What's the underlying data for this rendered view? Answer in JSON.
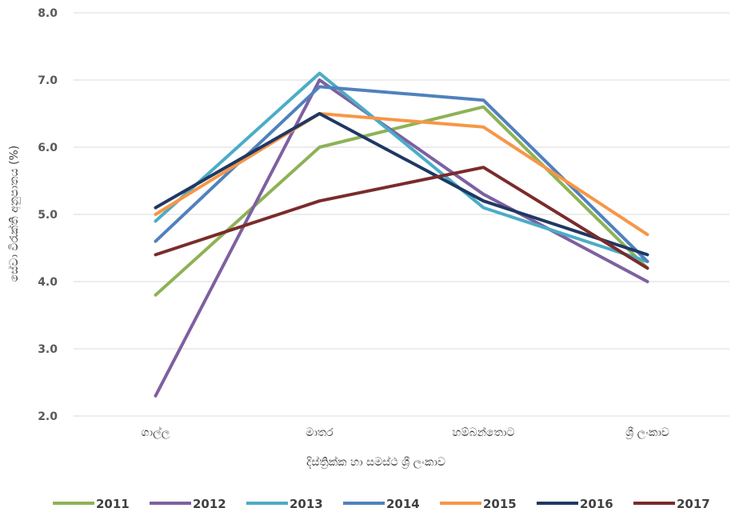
{
  "chart_data": {
    "type": "line",
    "categories": [
      "ගාල්ල",
      "මාතර",
      "හම්බන්තොට",
      "ශ්‍රී ලංකාව"
    ],
    "xlabel": "දිස්ත්‍රික්ක හා සමස්ථ ශ්‍රී ලංකාව",
    "ylabel": "සේවා විරැක්ති අනුපාතය (%)",
    "ylim": [
      2.0,
      8.0
    ],
    "y_ticks": [
      "2.0",
      "3.0",
      "4.0",
      "5.0",
      "6.0",
      "7.0",
      "8.0"
    ],
    "grid": true,
    "legend_position": "bottom",
    "series": [
      {
        "name": "2011",
        "color": "#8DB255",
        "values": [
          3.8,
          6.0,
          6.6,
          4.2
        ]
      },
      {
        "name": "2012",
        "color": "#7E60A0",
        "values": [
          2.3,
          7.0,
          5.3,
          4.0
        ]
      },
      {
        "name": "2013",
        "color": "#4BACC6",
        "values": [
          4.9,
          7.1,
          5.1,
          4.3
        ]
      },
      {
        "name": "2014",
        "color": "#4F81BD",
        "values": [
          4.6,
          6.9,
          6.7,
          4.3
        ]
      },
      {
        "name": "2015",
        "color": "#F79646",
        "values": [
          5.0,
          6.5,
          6.3,
          4.7
        ]
      },
      {
        "name": "2016",
        "color": "#1F3864",
        "values": [
          5.1,
          6.5,
          5.2,
          4.4
        ]
      },
      {
        "name": "2017",
        "color": "#7B2B2B",
        "values": [
          4.4,
          5.2,
          5.7,
          4.2
        ]
      }
    ]
  }
}
